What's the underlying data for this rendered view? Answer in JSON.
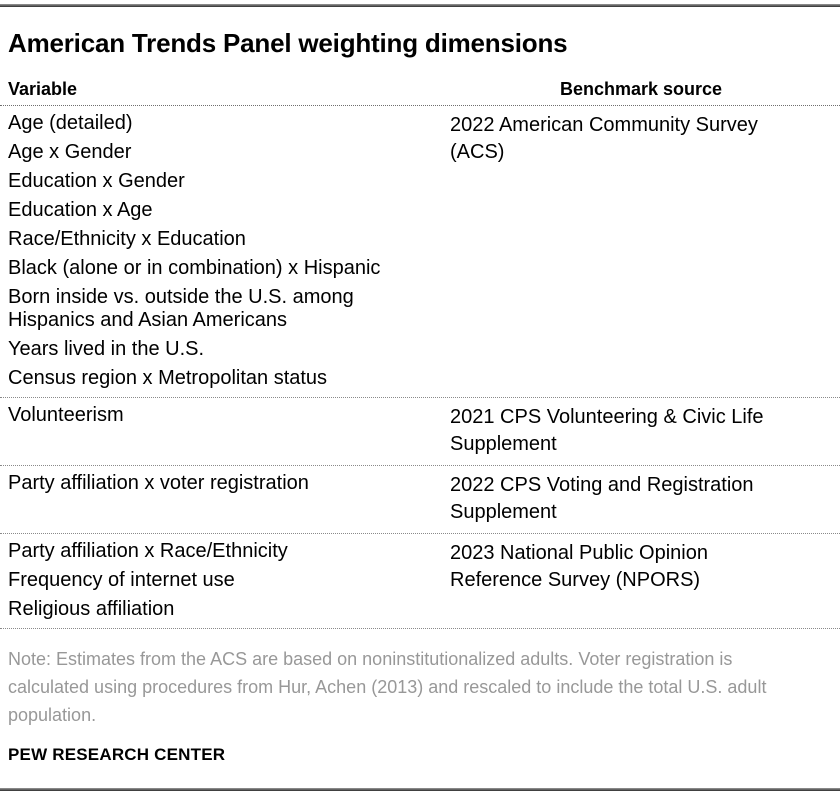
{
  "title": "American Trends Panel weighting dimensions",
  "table": {
    "headers": {
      "variable": "Variable",
      "benchmark": "Benchmark source"
    },
    "groups": [
      {
        "variables": [
          "Age (detailed)",
          "Age x Gender",
          "Education x Gender",
          "Education x Age",
          "Race/Ethnicity x Education",
          "Black (alone or in combination) x Hispanic",
          [
            "Born inside vs. outside the U.S. among",
            "Hispanics and Asian Americans"
          ],
          "Years lived in the U.S.",
          "Census region x Metropolitan status"
        ],
        "benchmark_lines": [
          "2022 American Community Survey",
          "(ACS)"
        ]
      },
      {
        "variables": [
          "Volunteerism"
        ],
        "benchmark_lines": [
          "2021 CPS Volunteering & Civic Life",
          "Supplement"
        ]
      },
      {
        "variables": [
          "Party affiliation x voter registration"
        ],
        "benchmark_lines": [
          "2022 CPS Voting and Registration",
          "Supplement"
        ]
      },
      {
        "variables": [
          "Party affiliation x Race/Ethnicity",
          "Frequency of internet use",
          "Religious affiliation"
        ],
        "benchmark_lines": [
          "2023 National Public Opinion",
          "Reference Survey (NPORS)"
        ]
      }
    ]
  },
  "note": "Note: Estimates from the ACS are based on noninstitutionalized adults. Voter registration is calculated using procedures from Hur, Achen (2013) and rescaled to include the total U.S. adult population.",
  "footer": "PEW RESEARCH CENTER",
  "colors": {
    "text": "#000000",
    "note_text": "#989898",
    "rule": "#2e2e2e",
    "separator": "#8a8a8a"
  },
  "chart_data": {
    "type": "table",
    "title": "American Trends Panel weighting dimensions",
    "columns": [
      "Variable",
      "Benchmark source"
    ],
    "rows": [
      [
        "Age (detailed)",
        "2022 American Community Survey (ACS)"
      ],
      [
        "Age x Gender",
        "2022 American Community Survey (ACS)"
      ],
      [
        "Education x Gender",
        "2022 American Community Survey (ACS)"
      ],
      [
        "Education x Age",
        "2022 American Community Survey (ACS)"
      ],
      [
        "Race/Ethnicity x Education",
        "2022 American Community Survey (ACS)"
      ],
      [
        "Black (alone or in combination) x Hispanic",
        "2022 American Community Survey (ACS)"
      ],
      [
        "Born inside vs. outside the U.S. among Hispanics and Asian Americans",
        "2022 American Community Survey (ACS)"
      ],
      [
        "Years lived in the U.S.",
        "2022 American Community Survey (ACS)"
      ],
      [
        "Census region x Metropolitan status",
        "2022 American Community Survey (ACS)"
      ],
      [
        "Volunteerism",
        "2021 CPS Volunteering & Civic Life Supplement"
      ],
      [
        "Party affiliation x voter registration",
        "2022 CPS Voting and Registration Supplement"
      ],
      [
        "Party affiliation x Race/Ethnicity",
        "2023 National Public Opinion Reference Survey (NPORS)"
      ],
      [
        "Frequency of internet use",
        "2023 National Public Opinion Reference Survey (NPORS)"
      ],
      [
        "Religious affiliation",
        "2023 National Public Opinion Reference Survey (NPORS)"
      ]
    ],
    "note": "Note: Estimates from the ACS are based on noninstitutionalized adults. Voter registration is calculated using procedures from Hur, Achen (2013) and rescaled to include the total U.S. adult population.",
    "source_label": "PEW RESEARCH CENTER"
  }
}
